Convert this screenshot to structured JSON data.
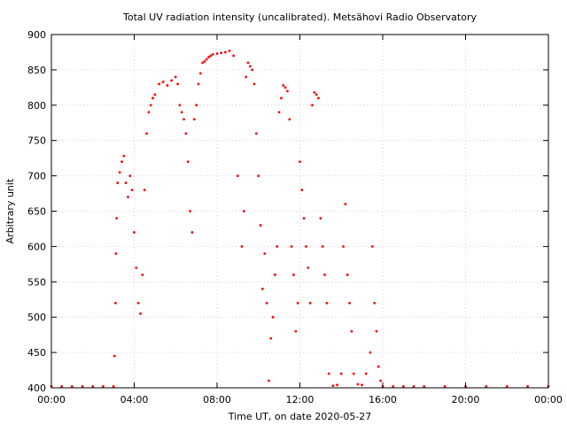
{
  "chart_data": {
    "type": "scatter",
    "title": "Total UV radiation intensity (uncalibrated). Metsähovi Radio Observatory",
    "xlabel": "Time UT, on date 2020-05-27",
    "ylabel": "Arbitrary unit",
    "xlim": [
      "00:00",
      "24:00"
    ],
    "ylim": [
      400,
      900
    ],
    "x_unit": "hours UT",
    "xticks": [
      "00:00",
      "04:00",
      "08:00",
      "12:00",
      "16:00",
      "20:00",
      "00:00"
    ],
    "xtick_hours": [
      0,
      4,
      8,
      12,
      16,
      20,
      24
    ],
    "yticks": [
      400,
      450,
      500,
      550,
      600,
      650,
      700,
      750,
      800,
      850,
      900
    ],
    "grid": true,
    "marker_color": "#ff0000",
    "series": [
      {
        "x": [
          0.0,
          0.5,
          1.0,
          1.5,
          2.0,
          2.5,
          3.0,
          3.05,
          3.1,
          3.12,
          3.15,
          3.2,
          3.3,
          3.4,
          3.5,
          3.6,
          3.7,
          3.8,
          3.9,
          4.0,
          4.1,
          4.2,
          4.3,
          4.4,
          4.5,
          4.6,
          4.7,
          4.8,
          4.9,
          5.0,
          5.2,
          5.4,
          5.6,
          5.8,
          6.0,
          6.1,
          6.2,
          6.3,
          6.4,
          6.5,
          6.6,
          6.7,
          6.8,
          6.9,
          7.0,
          7.1,
          7.2,
          7.3,
          7.4,
          7.5,
          7.6,
          7.7,
          7.8,
          8.0,
          8.2,
          8.4,
          8.6,
          8.8,
          9.0,
          9.2,
          9.3,
          9.4,
          9.5,
          9.6,
          9.7,
          9.8,
          9.9,
          10.0,
          10.1,
          10.2,
          10.3,
          10.4,
          10.5,
          10.6,
          10.7,
          10.8,
          10.9,
          11.0,
          11.1,
          11.2,
          11.3,
          11.4,
          11.5,
          11.6,
          11.7,
          11.8,
          11.9,
          12.0,
          12.1,
          12.2,
          12.3,
          12.4,
          12.5,
          12.6,
          12.7,
          12.8,
          12.9,
          13.0,
          13.1,
          13.2,
          13.3,
          13.4,
          13.6,
          13.8,
          14.0,
          14.1,
          14.2,
          14.3,
          14.4,
          14.5,
          14.6,
          14.8,
          15.0,
          15.2,
          15.4,
          15.5,
          15.6,
          15.7,
          15.8,
          15.9,
          16.0,
          16.5,
          17.0,
          17.5,
          18.0,
          19.0,
          20.0,
          21.0,
          22.0,
          23.0,
          24.0
        ],
        "y": [
          402,
          402,
          402,
          402,
          402,
          402,
          402,
          445,
          520,
          590,
          640,
          690,
          705,
          720,
          728,
          690,
          670,
          700,
          680,
          620,
          570,
          520,
          505,
          560,
          680,
          760,
          790,
          800,
          810,
          815,
          830,
          833,
          828,
          835,
          840,
          830,
          800,
          790,
          780,
          760,
          720,
          650,
          620,
          780,
          800,
          830,
          845,
          860,
          862,
          865,
          868,
          870,
          872,
          873,
          874,
          875,
          877,
          870,
          700,
          600,
          650,
          840,
          860,
          855,
          850,
          830,
          760,
          700,
          630,
          540,
          590,
          520,
          410,
          470,
          500,
          560,
          600,
          790,
          810,
          828,
          825,
          820,
          780,
          600,
          560,
          480,
          520,
          720,
          680,
          640,
          600,
          570,
          520,
          800,
          818,
          815,
          810,
          640,
          600,
          560,
          520,
          420,
          403,
          404,
          420,
          600,
          660,
          560,
          520,
          480,
          420,
          405,
          404,
          420,
          450,
          600,
          520,
          480,
          430,
          410,
          402,
          402,
          402,
          402,
          402,
          402,
          402,
          402,
          402,
          402,
          402
        ]
      }
    ]
  }
}
